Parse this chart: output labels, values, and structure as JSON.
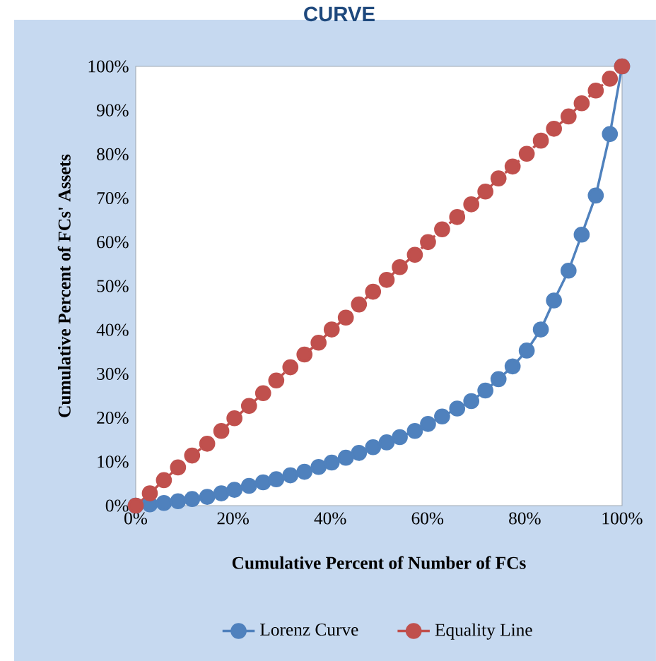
{
  "chart_data": {
    "type": "line",
    "title": "CURVE",
    "xlabel": "Cumulative Percent of Number of FCs",
    "ylabel": "Cumulative Percent of FCs' Assets",
    "x": [
      0,
      2.9,
      5.8,
      8.7,
      11.6,
      14.7,
      17.6,
      20.3,
      23.3,
      26.2,
      28.9,
      31.8,
      34.7,
      37.6,
      40.3,
      43.2,
      45.9,
      48.8,
      51.6,
      54.3,
      57.4,
      60.1,
      63.0,
      66.1,
      69.0,
      71.9,
      74.6,
      77.5,
      80.4,
      83.3,
      86.0,
      89.0,
      91.7,
      94.6,
      97.5,
      100
    ],
    "series": [
      {
        "name": "Lorenz Curve",
        "color": "#4f81bd",
        "line_style": "solid",
        "values": [
          0,
          0.3,
          0.6,
          1.0,
          1.5,
          2.0,
          2.8,
          3.6,
          4.5,
          5.3,
          6.0,
          6.9,
          7.7,
          8.8,
          9.8,
          10.9,
          12.0,
          13.3,
          14.4,
          15.6,
          17.0,
          18.6,
          20.3,
          22.1,
          23.8,
          26.2,
          28.8,
          31.7,
          35.3,
          40.1,
          46.7,
          53.5,
          61.7,
          70.6,
          84.6,
          100
        ]
      },
      {
        "name": "Equality Line",
        "color": "#c0504d",
        "line_style": "dashed",
        "values": [
          0,
          2.8,
          5.8,
          8.7,
          11.4,
          14.1,
          17.0,
          19.9,
          22.7,
          25.6,
          28.5,
          31.5,
          34.4,
          37.1,
          40.1,
          42.8,
          45.8,
          48.7,
          51.4,
          54.3,
          57.1,
          60.0,
          62.9,
          65.7,
          68.6,
          71.5,
          74.5,
          77.2,
          80.1,
          83.1,
          85.8,
          88.6,
          91.6,
          94.5,
          97.2,
          100
        ]
      }
    ],
    "xlim": [
      0,
      100
    ],
    "ylim": [
      0,
      100
    ],
    "xticks": [
      {
        "value": 0,
        "label": "0%"
      },
      {
        "value": 20,
        "label": "20%"
      },
      {
        "value": 40,
        "label": "40%"
      },
      {
        "value": 60,
        "label": "60%"
      },
      {
        "value": 80,
        "label": "80%"
      },
      {
        "value": 100,
        "label": "100%"
      }
    ],
    "yticks": [
      {
        "value": 0,
        "label": "0%"
      },
      {
        "value": 10,
        "label": "10%"
      },
      {
        "value": 20,
        "label": "20%"
      },
      {
        "value": 30,
        "label": "30%"
      },
      {
        "value": 40,
        "label": "40%"
      },
      {
        "value": 50,
        "label": "50%"
      },
      {
        "value": 60,
        "label": "60%"
      },
      {
        "value": 70,
        "label": "70%"
      },
      {
        "value": 80,
        "label": "80%"
      },
      {
        "value": 90,
        "label": "90%"
      },
      {
        "value": 100,
        "label": "100%"
      }
    ],
    "grid": false,
    "legend": "bottom",
    "marker": "circle"
  }
}
